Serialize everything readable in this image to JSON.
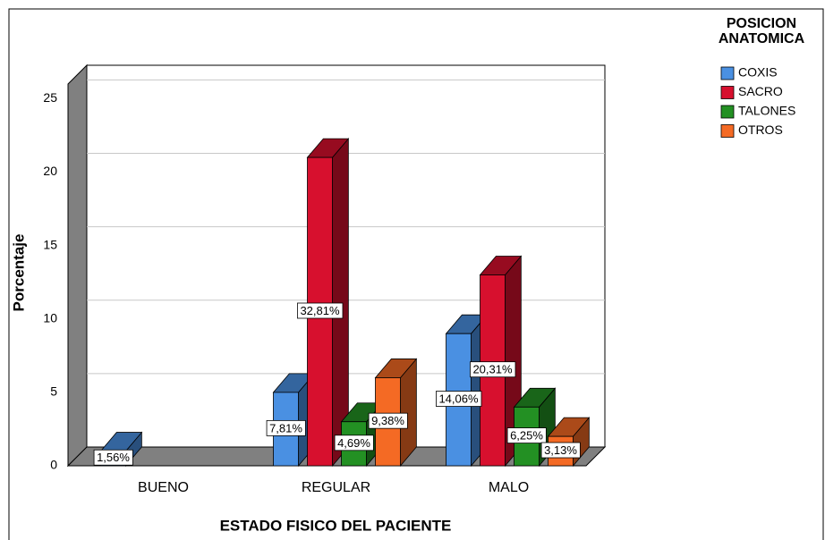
{
  "chart_data": {
    "type": "bar3d",
    "x_label": "ESTADO FISICO DEL PACIENTE",
    "y_label": "Porcentaje",
    "legend_title": "POSICION ANATOMICA",
    "categories": [
      "BUENO",
      "REGULAR",
      "MALO"
    ],
    "ylim": [
      0,
      26
    ],
    "yticks": [
      0,
      5,
      10,
      15,
      20,
      25
    ],
    "grid": true,
    "legend": "right",
    "series": [
      {
        "name": "COXIS",
        "color": "#4a90e2",
        "values": [
          1,
          5,
          9
        ],
        "value_labels": [
          "1,56%",
          "7,81%",
          "14,06%"
        ]
      },
      {
        "name": "SACRO",
        "color": "#d7102e",
        "values": [
          null,
          21,
          13
        ],
        "value_labels": [
          null,
          "32,81%",
          "20,31%"
        ]
      },
      {
        "name": "TALONES",
        "color": "#239023",
        "values": [
          null,
          3,
          4
        ],
        "value_labels": [
          null,
          "4,69%",
          "6,25%"
        ]
      },
      {
        "name": "OTROS",
        "color": "#f46a24",
        "values": [
          null,
          6,
          2
        ],
        "value_labels": [
          null,
          "9,38%",
          "3,13%"
        ]
      }
    ]
  }
}
